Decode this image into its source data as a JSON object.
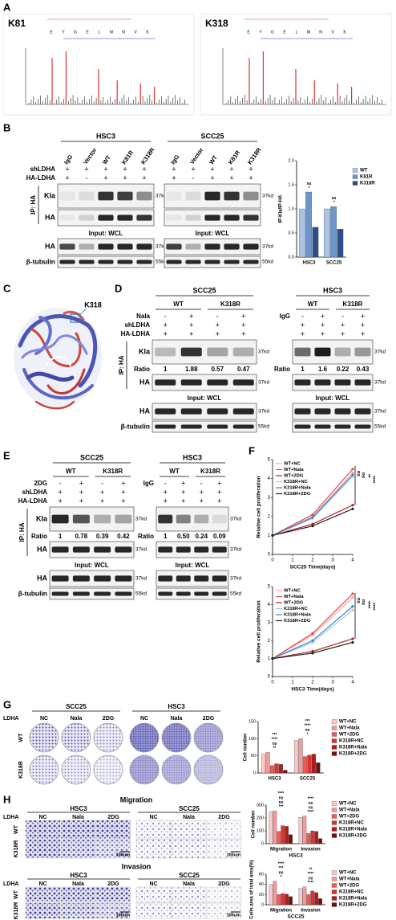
{
  "panel_a": {
    "label": "A",
    "spectra": [
      {
        "site": "K81",
        "sequence": [
          "E",
          "Y",
          "G",
          "E",
          "L",
          "M",
          "N",
          "V",
          "K"
        ]
      },
      {
        "site": "K318",
        "sequence": [
          "E",
          "Y",
          "G",
          "E",
          "L",
          "M",
          "N",
          "V",
          "K"
        ]
      }
    ]
  },
  "panel_b": {
    "label": "B",
    "row_labels": [
      "shLDHA",
      "HA-LDHA"
    ],
    "ip_label": "IP: HA",
    "blot_labels": [
      "Kla",
      "HA"
    ],
    "wcl_labels": [
      "HA",
      "β-tubulin"
    ],
    "groups": [
      {
        "title": "HSC3",
        "lanes": [
          "IgG",
          "Vector",
          "WT",
          "K81R",
          "K318R"
        ],
        "signs": [
          [
            "+",
            "+",
            "+",
            "+",
            "+"
          ],
          [
            "+",
            "-",
            "+",
            "+",
            "+"
          ]
        ],
        "input_label": "Input: WCL",
        "size_kla": "37kd",
        "size_input": "37kd",
        "size_tubulin": "55kd"
      },
      {
        "title": "SCC25",
        "lanes": [
          "IgG",
          "Vector",
          "WT",
          "K81R",
          "K318R"
        ],
        "signs": [
          [
            "+",
            "+",
            "+",
            "+",
            "+"
          ],
          [
            "+",
            "-",
            "+",
            "+",
            "+"
          ]
        ],
        "input_label": "Input: WCL",
        "size_kla": "37kd",
        "size_input": "37kd",
        "size_tubulin": "55kd"
      }
    ],
    "chart": {
      "type": "bar",
      "ylabel": "IP-Kla/IP-HA",
      "categories": [
        "HSC3",
        "SCC25"
      ],
      "ylim": [
        0,
        2
      ],
      "yticks": [
        {
          "value": 0,
          "label": "0.0"
        },
        0.5,
        {
          "value": 1,
          "label": "1.0"
        },
        1.5,
        {
          "value": 2,
          "label": "2.0"
        }
      ],
      "series": [
        {
          "name": "WT",
          "color": "#a9c4e4",
          "values": [
            1,
            1
          ]
        },
        {
          "name": "K81R",
          "color": "#6c96cc",
          "values": [
            1.35,
            1.05
          ]
        },
        {
          "name": "K318R",
          "color": "#2c4f8c",
          "values": [
            0.62,
            0.58
          ]
        }
      ],
      "significance": [
        [
          "*",
          "ns"
        ],
        [
          "*",
          "ns"
        ]
      ]
    }
  },
  "panel_c": {
    "label": "C",
    "site": "K318"
  },
  "panel_d": {
    "label": "D",
    "row_labels": [
      "shLDHA",
      "HA-LDHA"
    ],
    "ip_label": "IP: HA",
    "blot_labels": [
      "Kla",
      "HA"
    ],
    "wcl_labels": [
      "HA",
      "β-tubulin"
    ],
    "groups": [
      {
        "title": "SCC25",
        "genotypes": [
          "WT",
          "K318R"
        ],
        "treatment": "Nala",
        "signs": [
          [
            "-",
            "+",
            "-",
            "+"
          ],
          [
            "+",
            "+",
            "+",
            "+"
          ],
          [
            "+",
            "+",
            "+",
            "+"
          ]
        ],
        "ratio_label": "Ratio",
        "ratios": [
          "1",
          "1.88",
          "0.57",
          "0.47"
        ],
        "input_label": "Input: WCL",
        "size_kla": "37kd",
        "size_ha": "37kd",
        "size_input": "37kd",
        "size_tubulin": "55kd"
      },
      {
        "title": "HSC3",
        "genotypes": [
          "WT",
          "K318R"
        ],
        "treatment": "IgG",
        "signs": [
          [
            "-",
            "+",
            "-",
            "+"
          ],
          [
            "+",
            "+",
            "+",
            "+"
          ],
          [
            "+",
            "+",
            "+",
            "+"
          ]
        ],
        "ratio_label": "Ratio",
        "ratios": [
          "1",
          "1.6",
          "0.22",
          "0.43"
        ],
        "input_label": "Input: WCL",
        "size_kla": "37kd",
        "size_ha": "37kd",
        "size_input": "37kd",
        "size_tubulin": "55kd"
      }
    ]
  },
  "panel_e": {
    "label": "E",
    "row_labels": [
      "shLDHA",
      "HA-LDHA"
    ],
    "ip_label": "IP: HA",
    "blot_labels": [
      "Kla",
      "HA"
    ],
    "wcl_labels": [
      "HA",
      "β-tubulin"
    ],
    "groups": [
      {
        "title": "SCC25",
        "genotypes": [
          "WT",
          "K318R"
        ],
        "treatment": "2DG",
        "signs": [
          [
            "-",
            "+",
            "-",
            "+"
          ],
          [
            "+",
            "+",
            "+",
            "+"
          ],
          [
            "+",
            "+",
            "+",
            "+"
          ]
        ],
        "ratio_label": "Ratio",
        "ratios": [
          "1",
          "0.78",
          "0.39",
          "0.42"
        ],
        "input_label": "Input: WCL",
        "size_kla": "37kd",
        "size_ha": "37kd",
        "size_input": "37kd",
        "size_tubulin": "55kd"
      },
      {
        "title": "HSC3",
        "genotypes": [
          "WT",
          "K318R"
        ],
        "treatment": "IgG",
        "signs": [
          [
            "-",
            "+",
            "-",
            "+"
          ],
          [
            "+",
            "+",
            "+",
            "+"
          ],
          [
            "+",
            "+",
            "+",
            "+"
          ]
        ],
        "ratio_label": "Ratio",
        "ratios": [
          "1",
          "0.50",
          "0.24",
          "0.09"
        ],
        "input_label": "Input: WCL",
        "size_kla": "37kd",
        "size_ha": "37kd",
        "size_input": "37kd",
        "size_tubulin": "55kd"
      }
    ]
  },
  "panel_f": {
    "label": "F",
    "charts": [
      {
        "type": "line",
        "xlabel": "SCC25 Time(days)",
        "ylabel": "Relative cell proliferation",
        "x": [
          0,
          2,
          4
        ],
        "xlim": [
          0,
          4
        ],
        "xticks": [
          0,
          1,
          2,
          3,
          4
        ],
        "ylim": [
          0,
          5
        ],
        "yticks": [
          0,
          1,
          2,
          3,
          4,
          5
        ],
        "series": [
          {
            "name": "WT+NC",
            "color": "#f4a6a6",
            "values": [
              1,
              2.0,
              4.3
            ]
          },
          {
            "name": "WT+Nala",
            "color": "#e84a4a",
            "values": [
              1,
              2.1,
              4.5
            ]
          },
          {
            "name": "WT+2DG",
            "color": "#b71c1c",
            "values": [
              1,
              1.6,
              2.6
            ]
          },
          {
            "name": "K318R+NC",
            "color": "#9ecae1",
            "values": [
              1,
              1.9,
              4.1
            ]
          },
          {
            "name": "K318R+Nala",
            "color": "#3a86c8",
            "values": [
              1,
              1.95,
              4.2
            ]
          },
          {
            "name": "K318R+2DG",
            "color": "#222222",
            "values": [
              1,
              1.5,
              2.4
            ]
          }
        ],
        "significance": [
          "ns",
          "ns",
          "**",
          "****"
        ]
      },
      {
        "type": "line",
        "xlabel": "HSC3 Time(days)",
        "ylabel": "Relative cell proliferation",
        "x": [
          0,
          2,
          4
        ],
        "xlim": [
          0,
          4
        ],
        "xticks": [
          0,
          1,
          2,
          3,
          4
        ],
        "ylim": [
          0,
          5
        ],
        "yticks": [
          0,
          1,
          2,
          3,
          4,
          5
        ],
        "series": [
          {
            "name": "WT+NC",
            "color": "#f4a6a6",
            "values": [
              1,
              2.3,
              4.4
            ]
          },
          {
            "name": "WT+Nala",
            "color": "#e84a4a",
            "values": [
              1,
              2.4,
              4.6
            ]
          },
          {
            "name": "WT+2DG",
            "color": "#b71c1c",
            "values": [
              1,
              1.4,
              2.1
            ]
          },
          {
            "name": "K318R+NC",
            "color": "#9ecae1",
            "values": [
              1,
              1.9,
              3.7
            ]
          },
          {
            "name": "K318R+Nala",
            "color": "#3a86c8",
            "values": [
              1,
              2.0,
              3.9
            ]
          },
          {
            "name": "K318R+2DG",
            "color": "#222222",
            "values": [
              1,
              1.3,
              1.9
            ]
          }
        ],
        "significance": [
          "ns",
          "ns",
          "****",
          "****"
        ]
      }
    ]
  },
  "panel_g": {
    "label": "G",
    "row_header": "LDHA",
    "rows": [
      "WT",
      "K318R"
    ],
    "groups": [
      {
        "title": "SCC25",
        "conditions": [
          "NC",
          "Nala",
          "2DG"
        ]
      },
      {
        "title": "HSC3",
        "conditions": [
          "NC",
          "Nala",
          "2DG"
        ]
      }
    ],
    "chart": {
      "type": "bar",
      "ylabel": "Cell number",
      "categories": [
        "HSC3",
        "SCC25"
      ],
      "ylim": [
        0,
        150
      ],
      "yticks": [
        0,
        50,
        100,
        150
      ],
      "series": [
        {
          "name": "WT+NC",
          "color": "#f9c9c9",
          "values": [
            55,
            95
          ]
        },
        {
          "name": "WT+Nala",
          "color": "#f59a9a",
          "values": [
            60,
            100
          ]
        },
        {
          "name": "WT+2DG",
          "color": "#ee5b5b",
          "values": [
            22,
            48
          ]
        },
        {
          "name": "K318R+NC",
          "color": "#d93434",
          "values": [
            27,
            52
          ]
        },
        {
          "name": "K318R+Nala",
          "color": "#b31a1a",
          "values": [
            25,
            55
          ]
        },
        {
          "name": "K318R+2DG",
          "color": "#6e0e0e",
          "values": [
            8,
            30
          ]
        }
      ],
      "significance": [
        [
          "**",
          "ns",
          "****",
          "***"
        ],
        [
          "*",
          "ns",
          "****",
          "***"
        ]
      ]
    }
  },
  "panel_h": {
    "label": "H",
    "sections": [
      {
        "title": "Migration",
        "row_header": "LDHA",
        "rows": [
          "WT",
          "K318R"
        ],
        "scale_bars": [
          "100um",
          "100um"
        ],
        "groups": [
          {
            "title": "HSC3",
            "conditions": [
              "NC",
              "Nala",
              "2DG"
            ]
          },
          {
            "title": "SCC25",
            "conditions": [
              "NC",
              "Nala",
              "2DG"
            ]
          }
        ],
        "chart": {
          "type": "bar",
          "ylabel": "Cell number",
          "xlabel": "HSC3",
          "categories": [
            "Migration",
            "Invasion"
          ],
          "ylim": [
            0,
            300
          ],
          "yticks": [
            0,
            100,
            200,
            300
          ],
          "series": [
            {
              "name": "WT+NC",
              "color": "#f9c9c9",
              "values": [
                250,
                205
              ]
            },
            {
              "name": "WT+Nala",
              "color": "#f59a9a",
              "values": [
                255,
                215
              ]
            },
            {
              "name": "WT+2DG",
              "color": "#ee5b5b",
              "values": [
                95,
                80
              ]
            },
            {
              "name": "K318R+NC",
              "color": "#d93434",
              "values": [
                140,
                100
              ]
            },
            {
              "name": "K318R+Nala",
              "color": "#b31a1a",
              "values": [
                135,
                95
              ]
            },
            {
              "name": "K318R+2DG",
              "color": "#6e0e0e",
              "values": [
                70,
                40
              ]
            }
          ],
          "significance": [
            [
              "***",
              "ns",
              "ns",
              "****"
            ],
            [
              "****",
              "ns",
              "ns",
              "****"
            ]
          ]
        }
      },
      {
        "title": "Invasion",
        "row_header": "LDHA",
        "rows": [
          "WT",
          "K318R"
        ],
        "scale_bars": [
          "100um",
          "100um"
        ],
        "groups": [
          {
            "title": "HSC3",
            "conditions": [
              "NC",
              "Nala",
              "2DG"
            ]
          },
          {
            "title": "SCC25",
            "conditions": [
              "NC",
              "Nala",
              "2DG"
            ]
          }
        ],
        "chart": {
          "type": "bar",
          "ylabel": "Cells area of total area(%)",
          "xlabel": "SCC25",
          "categories": [
            "Migration",
            "Invasion"
          ],
          "ylim": [
            0,
            60
          ],
          "yticks": [
            0,
            20,
            40,
            60
          ],
          "series": [
            {
              "name": "WT+NC",
              "color": "#f9c9c9",
              "values": [
                40,
                32
              ]
            },
            {
              "name": "WT+Nala",
              "color": "#f59a9a",
              "values": [
                46,
                35
              ]
            },
            {
              "name": "WT+2DG",
              "color": "#ee5b5b",
              "values": [
                20,
                20
              ]
            },
            {
              "name": "K318R+NC",
              "color": "#d93434",
              "values": [
                22,
                27
              ]
            },
            {
              "name": "K318R+Nala",
              "color": "#b31a1a",
              "values": [
                21,
                24
              ]
            },
            {
              "name": "K318R+2DG",
              "color": "#6e0e0e",
              "values": [
                16,
                12
              ]
            }
          ],
          "significance": [
            [
              "*",
              "ns",
              "***",
              "****"
            ],
            [
              "****",
              "ns",
              "****",
              "**"
            ]
          ]
        }
      }
    ]
  }
}
